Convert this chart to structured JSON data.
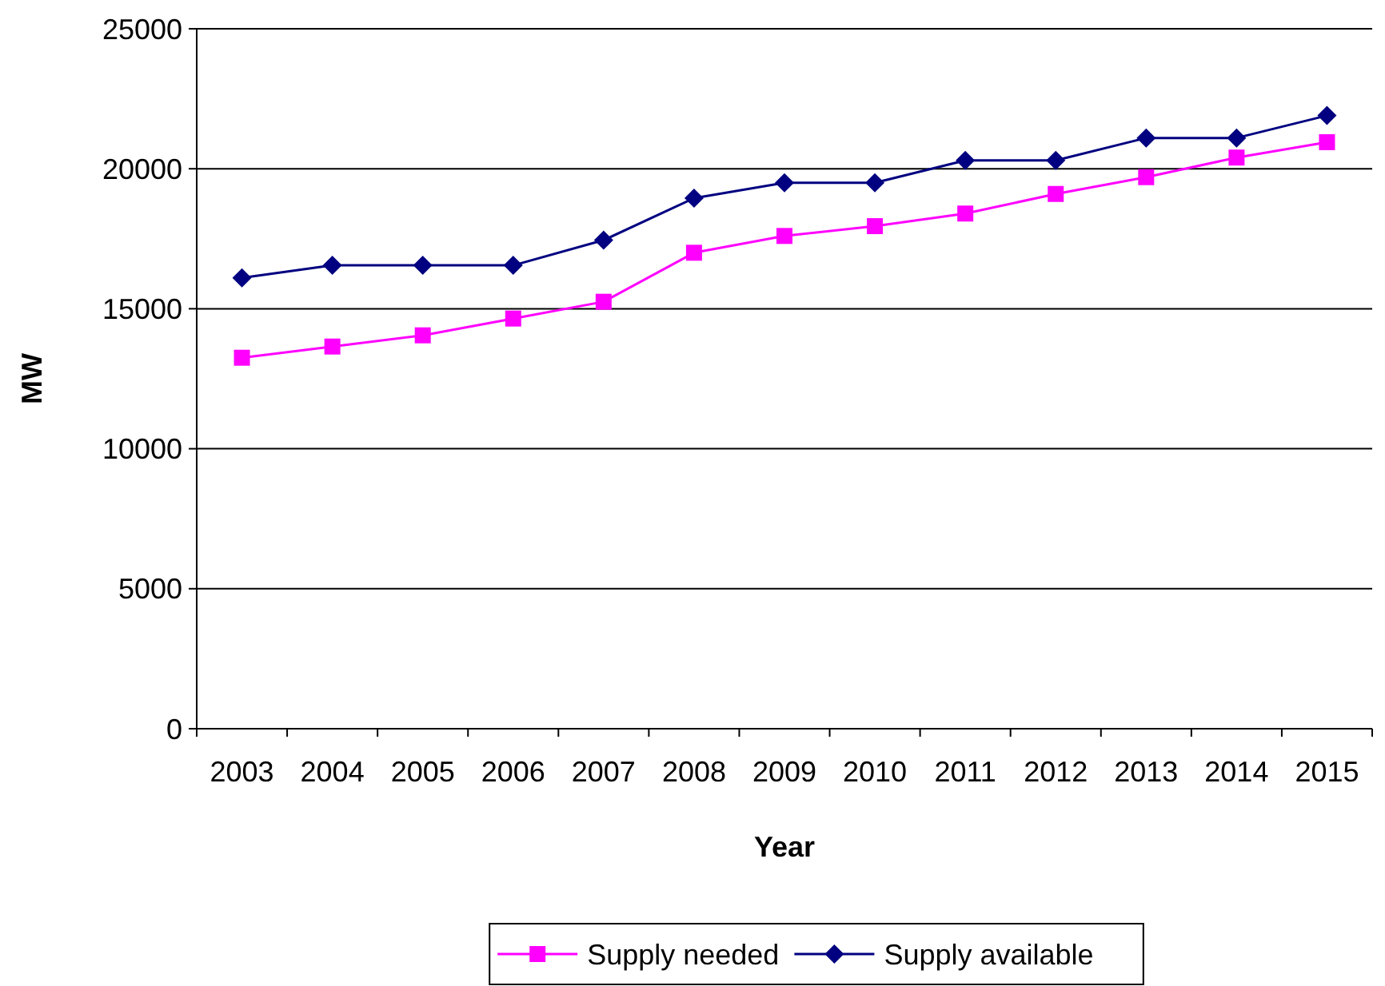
{
  "chart_data": {
    "type": "line",
    "xlabel": "Year",
    "ylabel": "MW",
    "categories": [
      "2003",
      "2004",
      "2005",
      "2006",
      "2007",
      "2008",
      "2009",
      "2010",
      "2011",
      "2012",
      "2013",
      "2014",
      "2015"
    ],
    "series": [
      {
        "name": "Supply needed",
        "color": "#ff00ff",
        "marker": "square",
        "values": [
          13250,
          13650,
          14050,
          14650,
          15250,
          17000,
          17600,
          17950,
          18400,
          19100,
          19700,
          20400,
          20950
        ]
      },
      {
        "name": "Supply available",
        "color": "#000080",
        "marker": "diamond",
        "values": [
          16100,
          16550,
          16550,
          16550,
          17450,
          18950,
          19500,
          19500,
          20300,
          20300,
          21100,
          21100,
          21900
        ]
      }
    ],
    "ylim": [
      0,
      25000
    ],
    "yticks": [
      0,
      5000,
      10000,
      15000,
      20000,
      25000
    ],
    "grid": "y",
    "legend": "bottom",
    "line_style": "solid"
  }
}
